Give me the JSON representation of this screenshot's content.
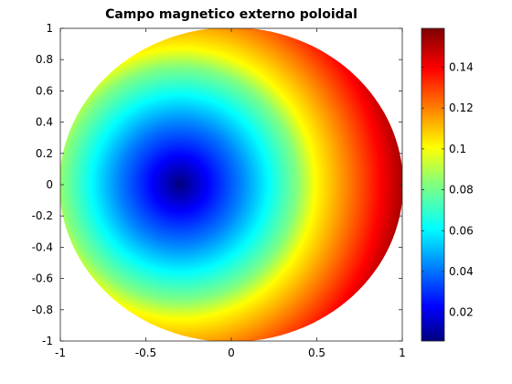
{
  "chart_data": {
    "type": "heatmap",
    "title": "Campo magnetico externo poloidal",
    "xlabel": "",
    "ylabel": "",
    "xlim": [
      -1,
      1
    ],
    "ylim": [
      -1,
      1
    ],
    "x_ticks": [
      "-1",
      "-0.5",
      "0",
      "0.5",
      "1"
    ],
    "y_ticks": [
      "1",
      "0.8",
      "0.6",
      "0.4",
      "0.2",
      "0",
      "-0.2",
      "-0.4",
      "-0.6",
      "-0.8",
      "-1"
    ],
    "domain": "unit disk",
    "minimum_location": [
      -0.3,
      0.0
    ],
    "value_min": 0.006,
    "value_max": 0.159,
    "colormap": "jet",
    "grid": false,
    "colorbar": {
      "position": "right",
      "ticks": [
        "0.02",
        "0.04",
        "0.06",
        "0.08",
        "0.1",
        "0.12",
        "0.14"
      ],
      "tick_values": [
        0.02,
        0.04,
        0.06,
        0.08,
        0.1,
        0.12,
        0.14
      ]
    }
  }
}
